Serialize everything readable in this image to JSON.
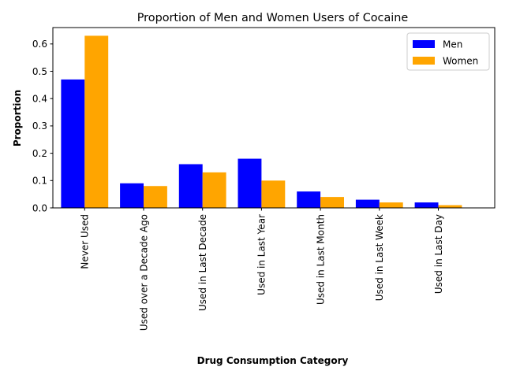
{
  "chart_data": {
    "type": "bar",
    "title": "Proportion of Men and Women Users of Cocaine",
    "xlabel": "Drug Consumption Category",
    "ylabel": "Proportion",
    "ylim": [
      0,
      0.66
    ],
    "yticks": [
      "0.0",
      "0.1",
      "0.2",
      "0.3",
      "0.4",
      "0.5",
      "0.6"
    ],
    "categories": [
      "Never Used",
      "Used over a Decade Ago",
      "Used in Last Decade",
      "Used in Last Year",
      "Used in Last Month",
      "Used in Last Week",
      "Used in Last Day"
    ],
    "series": [
      {
        "name": "Men",
        "color": "#0000ff",
        "values": [
          0.47,
          0.09,
          0.16,
          0.18,
          0.06,
          0.03,
          0.02
        ]
      },
      {
        "name": "Women",
        "color": "#ffa500",
        "values": [
          0.63,
          0.08,
          0.13,
          0.1,
          0.04,
          0.02,
          0.01
        ]
      }
    ],
    "legend_position": "top-right",
    "grid": false
  }
}
